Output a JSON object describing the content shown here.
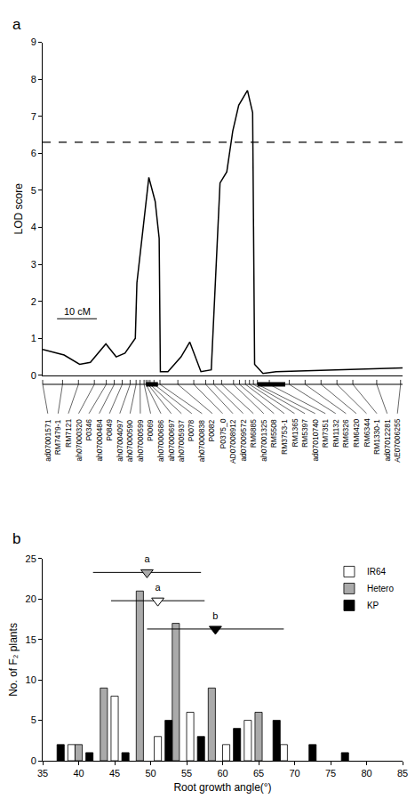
{
  "chart_data": [
    {
      "type": "line",
      "panel_label": "a",
      "y_label": "LOD score",
      "x": [
        0,
        5.4,
        9.3,
        12,
        15.9,
        18.5,
        20.7,
        23.3,
        23.7,
        24.6,
        25.7,
        26.7,
        28.3,
        29.3,
        29.6,
        31.5,
        34.8,
        37,
        39.8,
        42.4,
        44.6,
        46.3,
        47.8,
        49.3,
        51.5,
        52.8,
        53.3,
        55.4,
        58.7,
        90.5
      ],
      "values": [
        0.7,
        0.55,
        0.3,
        0.35,
        0.85,
        0.5,
        0.6,
        1.0,
        2.5,
        3.4,
        4.5,
        5.35,
        4.7,
        3.7,
        0.1,
        0.1,
        0.5,
        0.9,
        0.1,
        0.15,
        5.2,
        5.5,
        6.6,
        7.3,
        7.7,
        7.1,
        0.3,
        0.05,
        0.1,
        0.2
      ],
      "color": "#000000",
      "threshold": 6.3,
      "xlim": [
        0,
        90.5
      ],
      "ylim": [
        0,
        9
      ],
      "yticks": [
        0,
        1,
        2,
        3,
        4,
        5,
        6,
        7,
        8,
        9
      ],
      "tick_labels": "y",
      "grid": false,
      "scale_bar": {
        "label": "10 cM",
        "length": 10
      },
      "qtl_intervals": [
        [
          26,
          29
        ],
        [
          54,
          61
        ]
      ],
      "markers": [
        {
          "name": "ad07001571",
          "position": 0
        },
        {
          "name": "RM7479-1",
          "position": 5
        },
        {
          "name": "RM7121",
          "position": 9
        },
        {
          "name": "ah07000320",
          "position": 13
        },
        {
          "name": "P0346",
          "position": 16
        },
        {
          "name": "ah07000484",
          "position": 18
        },
        {
          "name": "P0849",
          "position": 20
        },
        {
          "name": "ah07004097",
          "position": 22
        },
        {
          "name": "ah07000590",
          "position": 23.5
        },
        {
          "name": "ah07000599",
          "position": 24.5
        },
        {
          "name": "P0069",
          "position": 25.5
        },
        {
          "name": "ah07000686",
          "position": 26
        },
        {
          "name": "ah07000697",
          "position": 26.5
        },
        {
          "name": "ah07005937",
          "position": 27
        },
        {
          "name": "P0078",
          "position": 28
        },
        {
          "name": "ah07000838",
          "position": 29.5
        },
        {
          "name": "P0082",
          "position": 34
        },
        {
          "name": "P0375_0",
          "position": 38
        },
        {
          "name": "AD07008912",
          "position": 41
        },
        {
          "name": "ad07009572",
          "position": 43
        },
        {
          "name": "RM6885",
          "position": 45
        },
        {
          "name": "ah07001325",
          "position": 48
        },
        {
          "name": "RM5508",
          "position": 49.5
        },
        {
          "name": "RM3753-1",
          "position": 51
        },
        {
          "name": "RM1365",
          "position": 52
        },
        {
          "name": "RM5397",
          "position": 53
        },
        {
          "name": "ad07010740",
          "position": 54
        },
        {
          "name": "RM7351",
          "position": 57
        },
        {
          "name": "RM1132",
          "position": 62
        },
        {
          "name": "RM6326",
          "position": 66
        },
        {
          "name": "RM6420",
          "position": 70
        },
        {
          "name": "RM6344",
          "position": 74
        },
        {
          "name": "RM1330-1",
          "position": 78
        },
        {
          "name": "ad07012281",
          "position": 84
        },
        {
          "name": "AE07006255",
          "position": 90
        }
      ]
    },
    {
      "type": "bar",
      "panel_label": "b",
      "x_label": "Root growth angle(°)",
      "y_label": "No. of F₂ plants",
      "series": [
        {
          "name": "IR64",
          "color": "#ffffff",
          "x": [
            39,
            45,
            51,
            55.5,
            60.5,
            63.5,
            68.5
          ],
          "values": [
            2,
            8,
            3,
            6,
            2,
            5,
            2
          ]
        },
        {
          "name": "Hetero",
          "color": "#aaaaaa",
          "x": [
            40,
            43.5,
            48.5,
            53.5,
            58.5,
            65
          ],
          "values": [
            2,
            9,
            21,
            17,
            9,
            6
          ]
        },
        {
          "name": "KP",
          "color": "#000000",
          "x": [
            37.5,
            41.5,
            46.5,
            52.5,
            57,
            62,
            67.5,
            72.5,
            77
          ],
          "values": [
            2,
            1,
            1,
            5,
            3,
            4,
            5,
            2,
            1
          ]
        }
      ],
      "mean_markers": [
        {
          "series": "Hetero",
          "x": 49.5,
          "error": 7.5,
          "y": 23.3,
          "letter": "a"
        },
        {
          "series": "IR64",
          "x": 51,
          "error": 6.5,
          "y": 19.8,
          "letter": "a"
        },
        {
          "series": "KP",
          "x": 59,
          "error": 9.5,
          "y": 16.3,
          "letter": "b"
        }
      ],
      "xlim": [
        35,
        85
      ],
      "xticks": [
        35,
        40,
        45,
        50,
        55,
        60,
        65,
        70,
        75,
        80,
        85
      ],
      "ylim": [
        0,
        25
      ],
      "yticks": [
        0,
        5,
        10,
        15,
        20,
        25
      ],
      "grid": false,
      "legend": "upper right"
    }
  ]
}
